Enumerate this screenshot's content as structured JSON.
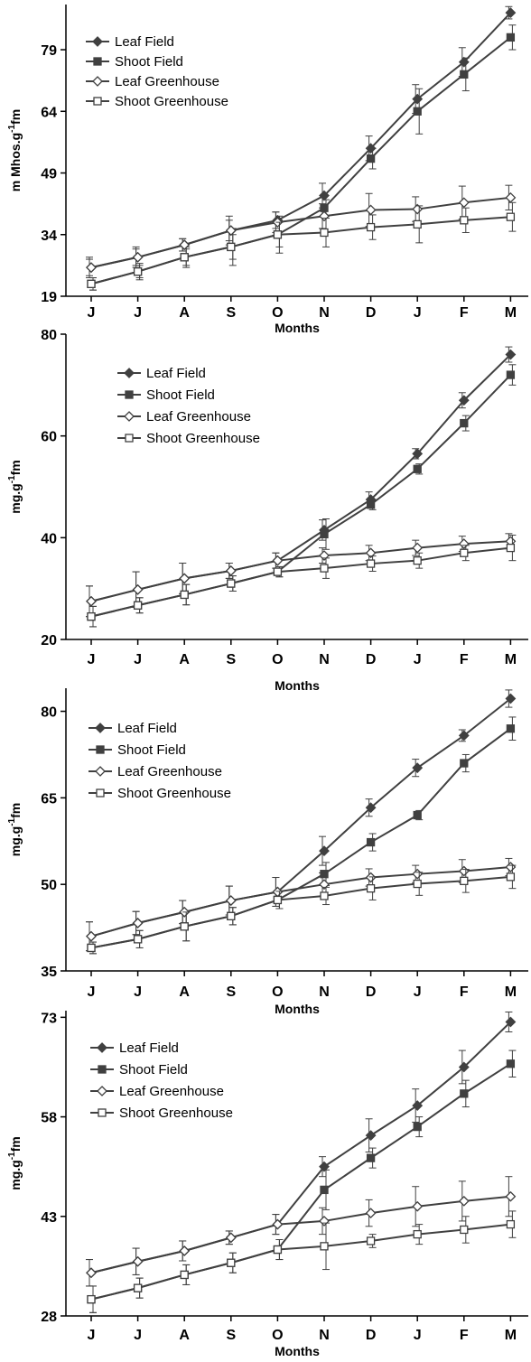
{
  "chart_data": [
    {
      "type": "line",
      "title": "",
      "xlabel": "Months",
      "ylabel": "m Mhos.g-1fm",
      "ylabel_parts": [
        "m Mhos.g",
        "-1",
        "fm"
      ],
      "ylim": [
        19,
        90
      ],
      "yticks": [
        19,
        34,
        49,
        64,
        79
      ],
      "categories": [
        "J",
        "J",
        "A",
        "S",
        "O",
        "N",
        "D",
        "J",
        "F",
        "M"
      ],
      "legend": "top-left",
      "grid": false,
      "series": [
        {
          "name": "Leaf Field",
          "marker": "diamond-filled",
          "values": [
            26,
            28.5,
            31.5,
            35,
            37.5,
            43.5,
            55,
            67,
            76,
            88
          ],
          "err": [
            2.5,
            2.5,
            1.5,
            3.5,
            2,
            3,
            3,
            3.5,
            3.5,
            1.5
          ]
        },
        {
          "name": "Shoot Field",
          "marker": "square-filled",
          "values": [
            22,
            25,
            28.5,
            31,
            34,
            40.5,
            52.5,
            64,
            73,
            82
          ],
          "err": [
            1.5,
            2,
            2.5,
            4.5,
            4.5,
            2,
            2.5,
            5.5,
            4,
            3
          ]
        },
        {
          "name": "Leaf Greenhouse",
          "marker": "diamond-open",
          "values": [
            26,
            28.5,
            31.5,
            35,
            37,
            38.5,
            40,
            40.2,
            41.8,
            43
          ],
          "err": [
            2,
            2,
            1.5,
            2.5,
            2.5,
            3,
            4,
            3,
            4,
            3
          ]
        },
        {
          "name": "Shoot Greenhouse",
          "marker": "square-open",
          "values": [
            22,
            25,
            28.5,
            31,
            34,
            34.5,
            35.8,
            36.5,
            37.5,
            38.3
          ],
          "err": [
            1.5,
            1.5,
            2,
            3,
            3,
            3.5,
            3,
            4.5,
            3,
            3.5
          ]
        }
      ]
    },
    {
      "type": "line",
      "title": "",
      "xlabel": "Months",
      "ylabel": "mg.g-1fm",
      "ylabel_parts": [
        "mg.g",
        "-1",
        "fm"
      ],
      "ylim": [
        20,
        80
      ],
      "yticks": [
        20,
        40,
        60,
        80
      ],
      "categories": [
        "J",
        "J",
        "A",
        "S",
        "O",
        "N",
        "D",
        "J",
        "F",
        "M"
      ],
      "legend": "top-left",
      "grid": false,
      "series": [
        {
          "name": "Leaf Field",
          "marker": "diamond-filled",
          "values": [
            27.5,
            29.8,
            32,
            33.5,
            35.5,
            41.5,
            47.5,
            56.5,
            67,
            76
          ],
          "err": [
            3,
            3.5,
            3,
            1.5,
            1.5,
            2,
            1.5,
            1,
            1.5,
            1.5
          ]
        },
        {
          "name": "Shoot Field",
          "marker": "square-filled",
          "values": [
            24.5,
            26.7,
            28.8,
            31,
            33.3,
            40.7,
            46.5,
            53.5,
            62.5,
            72
          ],
          "err": [
            2,
            1.5,
            2,
            1.5,
            1,
            3,
            1,
            1,
            1.5,
            2
          ]
        },
        {
          "name": "Leaf Greenhouse",
          "marker": "diamond-open",
          "values": [
            27.5,
            29.8,
            32,
            33.5,
            35.5,
            36.5,
            37,
            38,
            38.8,
            39.3
          ],
          "err": [
            3,
            3.5,
            3,
            1.5,
            1.5,
            1.5,
            1.5,
            1.5,
            1.5,
            1.5
          ]
        },
        {
          "name": "Shoot Greenhouse",
          "marker": "square-open",
          "values": [
            24.5,
            26.7,
            28.8,
            31,
            33.3,
            34,
            34.9,
            35.5,
            37,
            38
          ],
          "err": [
            2,
            1.5,
            2,
            1.5,
            1,
            2,
            1.5,
            1.5,
            1.5,
            2.5
          ]
        }
      ]
    },
    {
      "type": "line",
      "title": "",
      "xlabel": "Months",
      "ylabel": "mg.g-1fm",
      "ylabel_parts": [
        "mg.g",
        "-1",
        "fm"
      ],
      "ylim": [
        35,
        84
      ],
      "yticks": [
        35,
        50,
        65,
        80
      ],
      "categories": [
        "J",
        "J",
        "A",
        "S",
        "O",
        "N",
        "D",
        "J",
        "F",
        "M"
      ],
      "legend": "top-left",
      "grid": false,
      "series": [
        {
          "name": "Leaf Field",
          "marker": "diamond-filled",
          "values": [
            41,
            43.3,
            45.2,
            47.2,
            48.7,
            55.8,
            63.3,
            70.2,
            75.8,
            82.2
          ],
          "err": [
            2.5,
            2,
            2,
            2.5,
            2.5,
            2.5,
            1.5,
            1.5,
            1,
            1.5
          ]
        },
        {
          "name": "Shoot Field",
          "marker": "square-filled",
          "values": [
            39,
            40.5,
            42.7,
            44.5,
            47.3,
            51.8,
            57.3,
            62,
            71,
            77
          ],
          "err": [
            1,
            1.5,
            2.5,
            1.5,
            1.5,
            2,
            1.5,
            0.8,
            1.5,
            2
          ]
        },
        {
          "name": "Leaf Greenhouse",
          "marker": "diamond-open",
          "values": [
            41,
            43.3,
            45.2,
            47.2,
            48.7,
            50,
            51.2,
            51.8,
            52.3,
            53
          ],
          "err": [
            2.5,
            2,
            2,
            2.5,
            2.5,
            2,
            1.5,
            1.5,
            2,
            1.5
          ]
        },
        {
          "name": "Shoot Greenhouse",
          "marker": "square-open",
          "values": [
            39,
            40.5,
            42.7,
            44.5,
            47.3,
            48,
            49.3,
            50.1,
            50.6,
            51.3
          ],
          "err": [
            1,
            1.5,
            2.5,
            1.5,
            1.5,
            1.5,
            2,
            2,
            2,
            2
          ]
        }
      ]
    },
    {
      "type": "line",
      "title": "",
      "xlabel": "Months",
      "ylabel": "mg.g-1fm",
      "ylabel_parts": [
        "mg.g",
        "-1",
        "fm"
      ],
      "ylim": [
        28,
        74
      ],
      "yticks": [
        28,
        43,
        58,
        73
      ],
      "categories": [
        "J",
        "J",
        "A",
        "S",
        "O",
        "N",
        "D",
        "J",
        "F",
        "M"
      ],
      "legend": "top-left",
      "grid": false,
      "series": [
        {
          "name": "Leaf Field",
          "marker": "diamond-filled",
          "values": [
            34.5,
            36.2,
            37.8,
            39.8,
            41.8,
            50.5,
            55.2,
            59.7,
            65.5,
            72.3
          ],
          "err": [
            2,
            2,
            1.5,
            1,
            1.5,
            1.5,
            2.5,
            2.5,
            2.5,
            1.5
          ]
        },
        {
          "name": "Shoot Field",
          "marker": "square-filled",
          "values": [
            30.5,
            32.2,
            34.2,
            36,
            38,
            47,
            51.8,
            56.5,
            61.5,
            66
          ],
          "err": [
            2,
            1.5,
            1.5,
            1.5,
            1.5,
            3,
            1.5,
            1.5,
            2,
            2
          ]
        },
        {
          "name": "Leaf Greenhouse",
          "marker": "diamond-open",
          "values": [
            34.5,
            36.2,
            37.8,
            39.8,
            41.8,
            42.3,
            43.5,
            44.5,
            45.3,
            46
          ],
          "err": [
            2,
            2,
            1.5,
            1,
            1.5,
            2,
            2,
            3,
            3,
            3
          ]
        },
        {
          "name": "Shoot Greenhouse",
          "marker": "square-open",
          "values": [
            30.5,
            32.2,
            34.2,
            36,
            38,
            38.5,
            39.3,
            40.3,
            41,
            41.8
          ],
          "err": [
            2,
            1.5,
            1.5,
            1.5,
            1.5,
            3.5,
            1,
            1.5,
            2,
            2
          ]
        }
      ]
    }
  ]
}
